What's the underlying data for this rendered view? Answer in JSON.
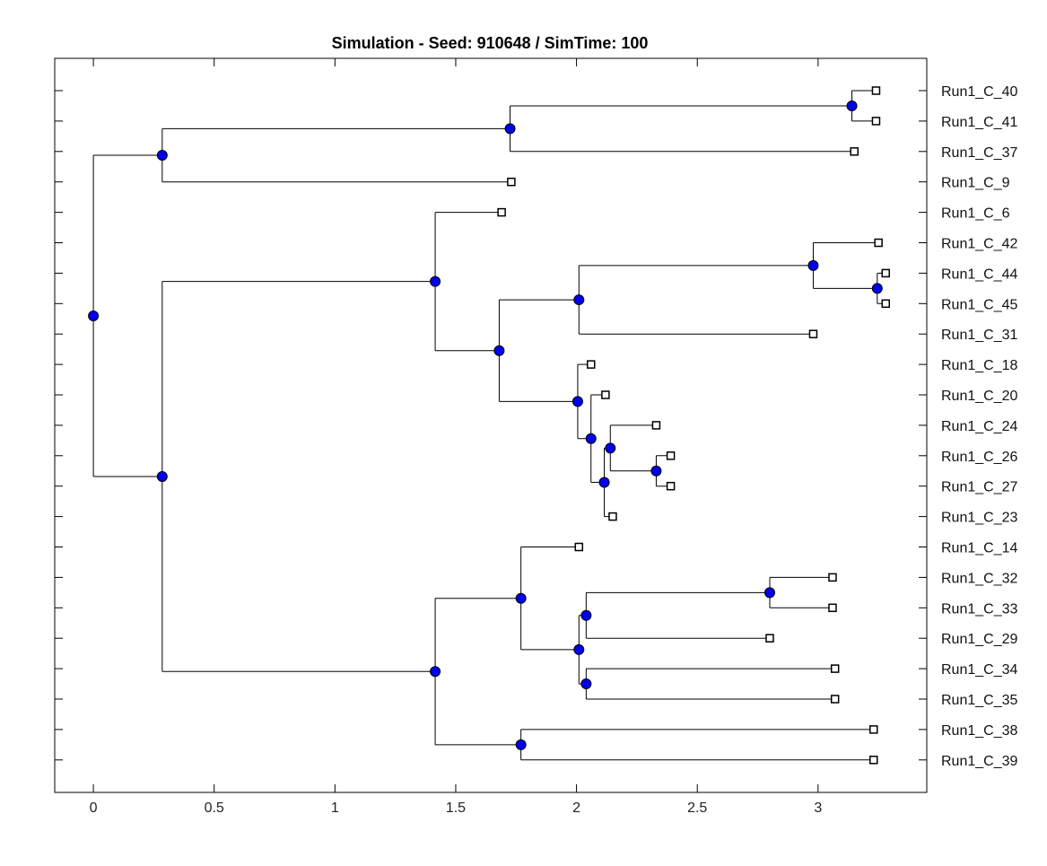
{
  "chart_data": {
    "type": "dendrogram",
    "title": "Simulation - Seed: 910648 / SimTime: 100",
    "xlabel": "",
    "ylabel": "",
    "xlim": [
      -0.16,
      3.45
    ],
    "xticks": [
      0,
      0.5,
      1,
      1.5,
      2,
      2.5,
      3
    ],
    "x_tick_labels": [
      "0",
      "0.5",
      "1",
      "1.5",
      "2",
      "2.5",
      "3"
    ],
    "leaf_order": [
      "Run1_C_40",
      "Run1_C_41",
      "Run1_C_37",
      "Run1_C_9",
      "Run1_C_6",
      "Run1_C_42",
      "Run1_C_44",
      "Run1_C_45",
      "Run1_C_31",
      "Run1_C_18",
      "Run1_C_20",
      "Run1_C_24",
      "Run1_C_26",
      "Run1_C_27",
      "Run1_C_23",
      "Run1_C_14",
      "Run1_C_32",
      "Run1_C_33",
      "Run1_C_29",
      "Run1_C_34",
      "Run1_C_35",
      "Run1_C_38",
      "Run1_C_39"
    ],
    "leaves": [
      {
        "label": "Run1_C_40",
        "x": 3.24
      },
      {
        "label": "Run1_C_41",
        "x": 3.24
      },
      {
        "label": "Run1_C_37",
        "x": 3.15
      },
      {
        "label": "Run1_C_9",
        "x": 1.73
      },
      {
        "label": "Run1_C_6",
        "x": 1.69
      },
      {
        "label": "Run1_C_42",
        "x": 3.25
      },
      {
        "label": "Run1_C_44",
        "x": 3.28
      },
      {
        "label": "Run1_C_45",
        "x": 3.28
      },
      {
        "label": "Run1_C_31",
        "x": 2.98
      },
      {
        "label": "Run1_C_18",
        "x": 2.06
      },
      {
        "label": "Run1_C_20",
        "x": 2.12
      },
      {
        "label": "Run1_C_24",
        "x": 2.33
      },
      {
        "label": "Run1_C_26",
        "x": 2.39
      },
      {
        "label": "Run1_C_27",
        "x": 2.39
      },
      {
        "label": "Run1_C_23",
        "x": 2.15
      },
      {
        "label": "Run1_C_14",
        "x": 2.01
      },
      {
        "label": "Run1_C_32",
        "x": 3.06
      },
      {
        "label": "Run1_C_33",
        "x": 3.06
      },
      {
        "label": "Run1_C_29",
        "x": 2.8
      },
      {
        "label": "Run1_C_34",
        "x": 3.07
      },
      {
        "label": "Run1_C_35",
        "x": 3.07
      },
      {
        "label": "Run1_C_38",
        "x": 3.23
      },
      {
        "label": "Run1_C_39",
        "x": 3.23
      }
    ],
    "nodes": [
      {
        "id": "n0",
        "x": 0,
        "children": [
          "n1",
          "n6"
        ]
      },
      {
        "id": "n1",
        "x": 0.285,
        "children": [
          "n2",
          "Run1_C_9"
        ]
      },
      {
        "id": "n2",
        "x": 1.725,
        "children": [
          "n3",
          "Run1_C_37"
        ]
      },
      {
        "id": "n3",
        "x": 3.14,
        "children": [
          "Run1_C_40",
          "Run1_C_41"
        ]
      },
      {
        "id": "n6",
        "x": 0.285,
        "children": [
          "n7",
          "n17"
        ]
      },
      {
        "id": "n7",
        "x": 1.415,
        "children": [
          "Run1_C_6",
          "n8"
        ]
      },
      {
        "id": "n8",
        "x": 1.68,
        "children": [
          "n9",
          "n12"
        ]
      },
      {
        "id": "n9",
        "x": 2.01,
        "children": [
          "n10",
          "Run1_C_31"
        ]
      },
      {
        "id": "n10",
        "x": 2.98,
        "children": [
          "Run1_C_42",
          "n11"
        ]
      },
      {
        "id": "n11",
        "x": 3.245,
        "children": [
          "Run1_C_44",
          "Run1_C_45"
        ]
      },
      {
        "id": "n12",
        "x": 2.005,
        "children": [
          "n13",
          "Run1_C_18"
        ]
      },
      {
        "id": "n13",
        "x": 2.06,
        "children": [
          "Run1_C_20",
          "n14"
        ]
      },
      {
        "id": "n14",
        "x": 2.115,
        "children": [
          "n15",
          "Run1_C_23"
        ]
      },
      {
        "id": "n15",
        "x": 2.14,
        "children": [
          "Run1_C_24",
          "n16"
        ]
      },
      {
        "id": "n16",
        "x": 2.33,
        "children": [
          "Run1_C_26",
          "Run1_C_27"
        ]
      },
      {
        "id": "n17",
        "x": 1.415,
        "children": [
          "n18",
          "n23"
        ]
      },
      {
        "id": "n18",
        "x": 1.77,
        "children": [
          "Run1_C_14",
          "n19"
        ]
      },
      {
        "id": "n19",
        "x": 2.01,
        "children": [
          "n20",
          "n22"
        ]
      },
      {
        "id": "n20",
        "x": 2.04,
        "children": [
          "n21",
          "Run1_C_29"
        ]
      },
      {
        "id": "n21",
        "x": 2.8,
        "children": [
          "Run1_C_32",
          "Run1_C_33"
        ]
      },
      {
        "id": "n22",
        "x": 2.04,
        "children": [
          "Run1_C_34",
          "Run1_C_35"
        ]
      },
      {
        "id": "n23",
        "x": 1.77,
        "children": [
          "Run1_C_38",
          "Run1_C_39"
        ]
      }
    ],
    "node_color": "#0000ee",
    "leaf_marker_color": "#ffffff",
    "line_color": "#000000",
    "grid": false
  }
}
